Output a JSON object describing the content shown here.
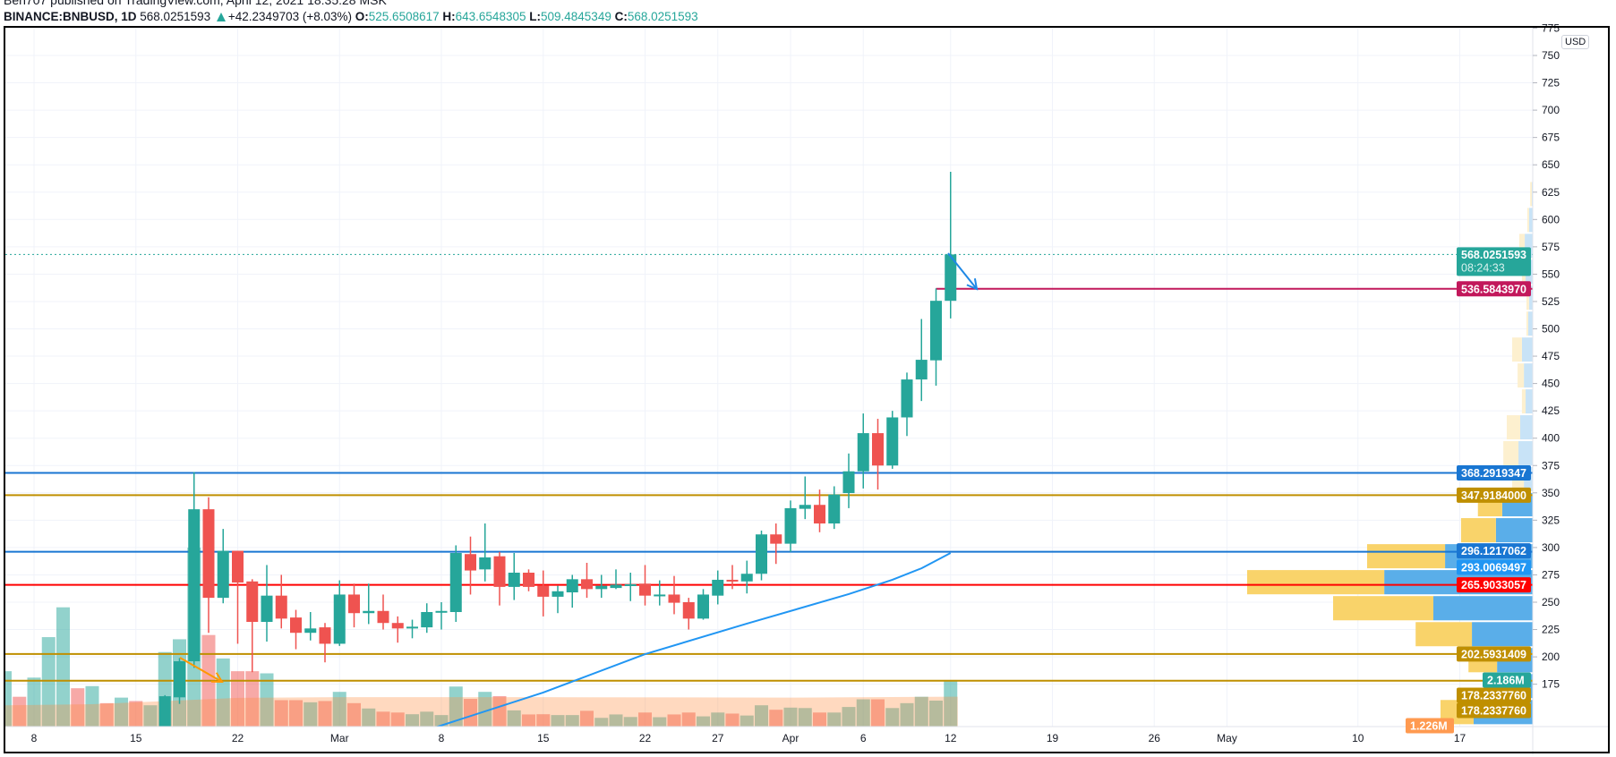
{
  "header": {
    "published_line": "Ben707 published on TradingView.com, April 12, 2021 18:35:28 MSK",
    "symbol": "BINANCE:BNBUSD, 1D",
    "last": "568.0251593",
    "change": "+42.2349703 (+8.03%)",
    "open_label": "O:",
    "open": "525.6508617",
    "high_label": "H:",
    "high": "643.6548305",
    "low_label": "L:",
    "low": "509.4845349",
    "close_label": "C:",
    "close": "568.0251593"
  },
  "price_axis": {
    "currency": "USD",
    "ticks": [
      "175",
      "200",
      "225",
      "250",
      "275",
      "300",
      "325",
      "350",
      "375",
      "400",
      "425",
      "450",
      "475",
      "500",
      "525",
      "550",
      "575",
      "600",
      "625",
      "650",
      "675",
      "700",
      "725",
      "750",
      "775"
    ]
  },
  "time_axis": {
    "labels": [
      {
        "date": "2021-02-08",
        "text": "8"
      },
      {
        "date": "2021-02-15",
        "text": "15"
      },
      {
        "date": "2021-02-22",
        "text": "22"
      },
      {
        "date": "2021-03-01",
        "text": "Mar"
      },
      {
        "date": "2021-03-08",
        "text": "8"
      },
      {
        "date": "2021-03-15",
        "text": "15"
      },
      {
        "date": "2021-03-22",
        "text": "22"
      },
      {
        "date": "2021-03-27",
        "text": "27"
      },
      {
        "date": "2021-04-01",
        "text": "Apr"
      },
      {
        "date": "2021-04-06",
        "text": "6"
      },
      {
        "date": "2021-04-12",
        "text": "12"
      },
      {
        "date": "2021-04-19",
        "text": "19"
      },
      {
        "date": "2021-04-26",
        "text": "26"
      },
      {
        "date": "2021-05-01",
        "text": "May"
      },
      {
        "date": "2021-05-10",
        "text": "10"
      },
      {
        "date": "2021-05-17",
        "text": "17"
      }
    ]
  },
  "colors": {
    "up": "#26a69a",
    "down": "#ef5350",
    "level_blue": "#1976d2",
    "level_gold": "#bf8f00",
    "level_red": "#ff0000",
    "level_crimson": "#c2185b",
    "ma": "#2196f3",
    "arrow_orange": "#ff9800",
    "arrow_blue": "#1e88e5",
    "profile_up": "#5aaee9",
    "profile_down": "#f9d36a",
    "profile_up_faded": "#c8e3f7",
    "profile_down_faded": "#fdf0cf"
  },
  "levels": [
    {
      "price": 368.2919347,
      "label": "368.2919347",
      "color": "#1976d2"
    },
    {
      "price": 347.9184,
      "label": "347.9184000",
      "color": "#bf8f00"
    },
    {
      "price": 296.1217062,
      "label": "296.1217062",
      "color": "#1976d2"
    },
    {
      "price": 265.9033057,
      "label": "265.9033057",
      "color": "#ff0000"
    },
    {
      "price": 202.5931409,
      "label": "202.5931409",
      "color": "#bf8f00"
    },
    {
      "price": 178.233776,
      "label": "178.2337760",
      "color": "#bf8f00"
    }
  ],
  "ray": {
    "price": 536.584397,
    "label": "536.5843970",
    "color": "#c2185b",
    "from_date": "2021-04-11"
  },
  "last_price": {
    "price": 568.0251593,
    "label": "568.0251593",
    "countdown": "08:24:33"
  },
  "extra_tags": [
    {
      "label": "293.0069497",
      "color": "#2196f3"
    },
    {
      "label": "2.186M",
      "color": "#26a69a"
    },
    {
      "label": "178.2337760",
      "color": "#bf8f00"
    },
    {
      "label": "1.226M",
      "color": "#ff9a50"
    }
  ],
  "chart_data": {
    "type": "candlestick",
    "candles": [
      [
        "2021-02-17",
        130,
        165,
        125,
        164
      ],
      [
        "2021-02-18",
        163,
        199,
        157,
        196
      ],
      [
        "2021-02-19",
        196,
        369,
        190,
        335
      ],
      [
        "2021-02-20",
        335,
        346,
        222,
        254
      ],
      [
        "2021-02-21",
        254,
        317,
        249,
        297
      ],
      [
        "2021-02-22",
        297,
        297,
        212,
        268
      ],
      [
        "2021-02-23",
        269,
        271,
        186,
        232
      ],
      [
        "2021-02-24",
        232,
        284,
        214,
        256
      ],
      [
        "2021-02-25",
        256,
        275,
        226,
        235
      ],
      [
        "2021-02-26",
        236,
        243,
        207,
        222
      ],
      [
        "2021-02-27",
        222,
        241,
        215,
        226
      ],
      [
        "2021-02-28",
        227,
        231,
        195,
        212
      ],
      [
        "2021-03-01",
        212,
        270,
        210,
        257
      ],
      [
        "2021-03-02",
        257,
        267,
        227,
        240
      ],
      [
        "2021-03-03",
        240,
        267,
        230,
        242
      ],
      [
        "2021-03-04",
        242,
        257,
        225,
        231
      ],
      [
        "2021-03-05",
        231,
        237,
        213,
        226
      ],
      [
        "2021-03-06",
        226.5,
        234,
        217,
        227.6
      ],
      [
        "2021-03-07",
        227,
        249,
        222,
        241
      ],
      [
        "2021-03-08",
        241,
        250,
        225,
        242
      ],
      [
        "2021-03-09",
        241,
        302,
        232,
        295
      ],
      [
        "2021-03-10",
        294,
        310,
        257,
        279
      ],
      [
        "2021-03-11",
        280,
        322,
        269,
        291
      ],
      [
        "2021-03-12",
        292,
        296,
        247,
        264
      ],
      [
        "2021-03-13",
        264,
        295,
        252,
        277
      ],
      [
        "2021-03-14",
        277,
        280,
        260,
        264
      ],
      [
        "2021-03-15",
        265,
        279,
        237,
        255
      ],
      [
        "2021-03-16",
        255,
        265,
        240,
        260
      ],
      [
        "2021-03-17",
        259,
        275,
        245,
        271
      ],
      [
        "2021-03-18",
        271,
        286,
        254,
        262
      ],
      [
        "2021-03-19",
        262,
        275,
        254,
        265
      ],
      [
        "2021-03-20",
        263,
        280,
        262,
        266
      ],
      [
        "2021-03-21",
        265,
        277,
        251,
        266.4
      ],
      [
        "2021-03-22",
        267,
        284,
        247,
        256
      ],
      [
        "2021-03-23",
        256,
        270,
        247,
        257
      ],
      [
        "2021-03-24",
        257,
        274,
        239,
        249.5
      ],
      [
        "2021-03-25",
        250,
        254,
        225,
        235
      ],
      [
        "2021-03-26",
        235,
        262,
        234,
        257
      ],
      [
        "2021-03-27",
        256,
        279,
        248,
        270.5
      ],
      [
        "2021-03-28",
        270.5,
        284,
        262,
        269.7
      ],
      [
        "2021-03-29",
        269,
        288,
        258,
        276
      ],
      [
        "2021-03-30",
        276,
        315.5,
        270,
        312
      ],
      [
        "2021-03-31",
        312,
        322,
        285,
        303.5
      ],
      [
        "2021-04-01",
        303.5,
        343,
        296,
        336
      ],
      [
        "2021-04-02",
        335.4,
        365,
        326,
        339
      ],
      [
        "2021-04-03",
        339,
        353,
        314,
        322
      ],
      [
        "2021-04-04",
        322,
        356,
        317,
        348.5
      ],
      [
        "2021-04-05",
        349.8,
        386,
        336,
        369.7
      ],
      [
        "2021-04-06",
        369.7,
        422.6,
        354,
        404.6
      ],
      [
        "2021-04-07",
        404.6,
        417.7,
        353,
        375
      ],
      [
        "2021-04-08",
        375,
        425,
        372,
        419
      ],
      [
        "2021-04-09",
        419,
        460,
        402,
        453.7
      ],
      [
        "2021-04-10",
        453.7,
        509,
        434,
        471.7
      ],
      [
        "2021-04-11",
        471.2,
        537,
        448,
        525.65
      ],
      [
        "2021-04-12",
        525.6508617,
        643.6548305,
        509.4845349,
        568.0251593
      ]
    ],
    "volume_millions": [
      [
        "2021-02-06",
        2.6,
        "up"
      ],
      [
        "2021-02-07",
        1.4,
        "down"
      ],
      [
        "2021-02-08",
        2.3,
        "up"
      ],
      [
        "2021-02-09",
        4.2,
        "up"
      ],
      [
        "2021-02-10",
        5.6,
        "up"
      ],
      [
        "2021-02-11",
        1.8,
        "down"
      ],
      [
        "2021-02-12",
        1.9,
        "up"
      ],
      [
        "2021-02-13",
        1.1,
        "down"
      ],
      [
        "2021-02-14",
        1.36,
        "up"
      ],
      [
        "2021-02-15",
        1.2,
        "down"
      ],
      [
        "2021-02-16",
        1.0,
        "up"
      ],
      [
        "2021-02-17",
        3.5,
        "up"
      ],
      [
        "2021-02-18",
        4.1,
        "up"
      ],
      [
        "2021-02-19",
        8.4,
        "up"
      ],
      [
        "2021-02-20",
        4.3,
        "down"
      ],
      [
        "2021-02-21",
        3.2,
        "up"
      ],
      [
        "2021-02-22",
        2.6,
        "down"
      ],
      [
        "2021-02-23",
        2.6,
        "down"
      ],
      [
        "2021-02-24",
        2.5,
        "up"
      ],
      [
        "2021-02-25",
        1.24,
        "down"
      ],
      [
        "2021-02-26",
        1.24,
        "down"
      ],
      [
        "2021-02-27",
        1.14,
        "up"
      ],
      [
        "2021-02-28",
        1.2,
        "down"
      ],
      [
        "2021-03-01",
        1.63,
        "up"
      ],
      [
        "2021-03-02",
        1.1,
        "down"
      ],
      [
        "2021-03-03",
        0.85,
        "up"
      ],
      [
        "2021-03-04",
        0.7,
        "down"
      ],
      [
        "2021-03-05",
        0.66,
        "down"
      ],
      [
        "2021-03-06",
        0.58,
        "up"
      ],
      [
        "2021-03-07",
        0.7,
        "up"
      ],
      [
        "2021-03-08",
        0.54,
        "up"
      ],
      [
        "2021-03-09",
        1.88,
        "up"
      ],
      [
        "2021-03-10",
        1.3,
        "down"
      ],
      [
        "2021-03-11",
        1.63,
        "up"
      ],
      [
        "2021-03-12",
        1.43,
        "down"
      ],
      [
        "2021-03-13",
        0.76,
        "up"
      ],
      [
        "2021-03-14",
        0.57,
        "down"
      ],
      [
        "2021-03-15",
        0.58,
        "down"
      ],
      [
        "2021-03-16",
        0.54,
        "up"
      ],
      [
        "2021-03-17",
        0.54,
        "up"
      ],
      [
        "2021-03-18",
        0.74,
        "down"
      ],
      [
        "2021-03-19",
        0.41,
        "up"
      ],
      [
        "2021-03-20",
        0.57,
        "up"
      ],
      [
        "2021-03-21",
        0.45,
        "up"
      ],
      [
        "2021-03-22",
        0.66,
        "down"
      ],
      [
        "2021-03-23",
        0.44,
        "up"
      ],
      [
        "2021-03-24",
        0.57,
        "down"
      ],
      [
        "2021-03-25",
        0.66,
        "down"
      ],
      [
        "2021-03-26",
        0.48,
        "up"
      ],
      [
        "2021-03-27",
        0.66,
        "up"
      ],
      [
        "2021-03-28",
        0.61,
        "down"
      ],
      [
        "2021-03-29",
        0.52,
        "up"
      ],
      [
        "2021-03-30",
        1.0,
        "up"
      ],
      [
        "2021-03-31",
        0.79,
        "down"
      ],
      [
        "2021-04-01",
        0.89,
        "up"
      ],
      [
        "2021-04-02",
        0.87,
        "up"
      ],
      [
        "2021-04-03",
        0.66,
        "down"
      ],
      [
        "2021-04-04",
        0.66,
        "up"
      ],
      [
        "2021-04-05",
        0.92,
        "up"
      ],
      [
        "2021-04-06",
        1.28,
        "up"
      ],
      [
        "2021-04-07",
        1.28,
        "down"
      ],
      [
        "2021-04-08",
        0.87,
        "up"
      ],
      [
        "2021-04-09",
        1.1,
        "up"
      ],
      [
        "2021-04-10",
        1.4,
        "up"
      ],
      [
        "2021-04-11",
        1.22,
        "up"
      ],
      [
        "2021-04-12",
        2.186,
        "up"
      ]
    ],
    "volume_ma_millions": [
      [
        "2021-02-06",
        1.0
      ],
      [
        "2021-02-12",
        1.05
      ],
      [
        "2021-02-17",
        1.2
      ],
      [
        "2021-02-22",
        1.35
      ],
      [
        "2021-03-01",
        1.38
      ],
      [
        "2021-03-15",
        1.38
      ],
      [
        "2021-04-01",
        1.36
      ],
      [
        "2021-04-12",
        1.4
      ]
    ],
    "moving_average": [
      [
        "2021-03-07",
        133
      ],
      [
        "2021-03-15",
        167.4
      ],
      [
        "2021-03-22",
        202.5
      ],
      [
        "2021-03-29",
        230.4
      ],
      [
        "2021-04-05",
        257.4
      ],
      [
        "2021-04-08",
        270.5
      ],
      [
        "2021-04-10",
        281
      ],
      [
        "2021-04-12",
        295
      ]
    ],
    "volume_profile": [
      {
        "low": 137.6,
        "high": 161.4,
        "up": 0.207,
        "down": 0.116,
        "faded": false
      },
      {
        "low": 161.4,
        "high": 185.1,
        "up": 0.094,
        "down": 0.053,
        "faded": false
      },
      {
        "low": 185.1,
        "high": 208.9,
        "up": 0.125,
        "down": 0.1,
        "faded": false
      },
      {
        "low": 208.9,
        "high": 232.6,
        "up": 0.213,
        "down": 0.197,
        "faded": false
      },
      {
        "low": 232.6,
        "high": 256.4,
        "up": 0.348,
        "down": 0.351,
        "faded": false
      },
      {
        "low": 256.4,
        "high": 280.2,
        "up": 0.52,
        "down": 0.48,
        "faded": false
      },
      {
        "low": 280.2,
        "high": 303.9,
        "up": 0.307,
        "down": 0.273,
        "faded": false
      },
      {
        "low": 303.9,
        "high": 327.7,
        "up": 0.129,
        "down": 0.122,
        "faded": false
      },
      {
        "low": 327.7,
        "high": 350.7,
        "up": 0.107,
        "down": 0.085,
        "faded": false
      },
      {
        "low": 350.7,
        "high": 374.4,
        "up": 0.031,
        "down": 0.041,
        "faded": true
      },
      {
        "low": 374.4,
        "high": 398.1,
        "up": 0.05,
        "down": 0.053,
        "faded": true
      },
      {
        "low": 398.1,
        "high": 421.8,
        "up": 0.044,
        "down": 0.047,
        "faded": true
      },
      {
        "low": 421.8,
        "high": 445.5,
        "up": 0.025,
        "down": 0.013,
        "faded": true
      },
      {
        "low": 445.5,
        "high": 469.2,
        "up": 0.031,
        "down": 0.022,
        "faded": true
      },
      {
        "low": 469.2,
        "high": 492.9,
        "up": 0.038,
        "down": 0.034,
        "faded": true
      },
      {
        "low": 492.9,
        "high": 516.6,
        "up": 0.016,
        "down": 0.006,
        "faded": true
      },
      {
        "low": 516.6,
        "high": 540.3,
        "up": 0.013,
        "down": 0.009,
        "faded": true
      },
      {
        "low": 540.3,
        "high": 564.0,
        "up": 0.025,
        "down": 0.013,
        "faded": true
      },
      {
        "low": 564.0,
        "high": 587.7,
        "up": 0.028,
        "down": 0.019,
        "faded": true
      },
      {
        "low": 587.7,
        "high": 611.4,
        "up": 0.013,
        "down": 0.006,
        "faded": true
      },
      {
        "low": 611.4,
        "high": 635.1,
        "up": 0.003,
        "down": 0.006,
        "faded": true
      }
    ]
  }
}
